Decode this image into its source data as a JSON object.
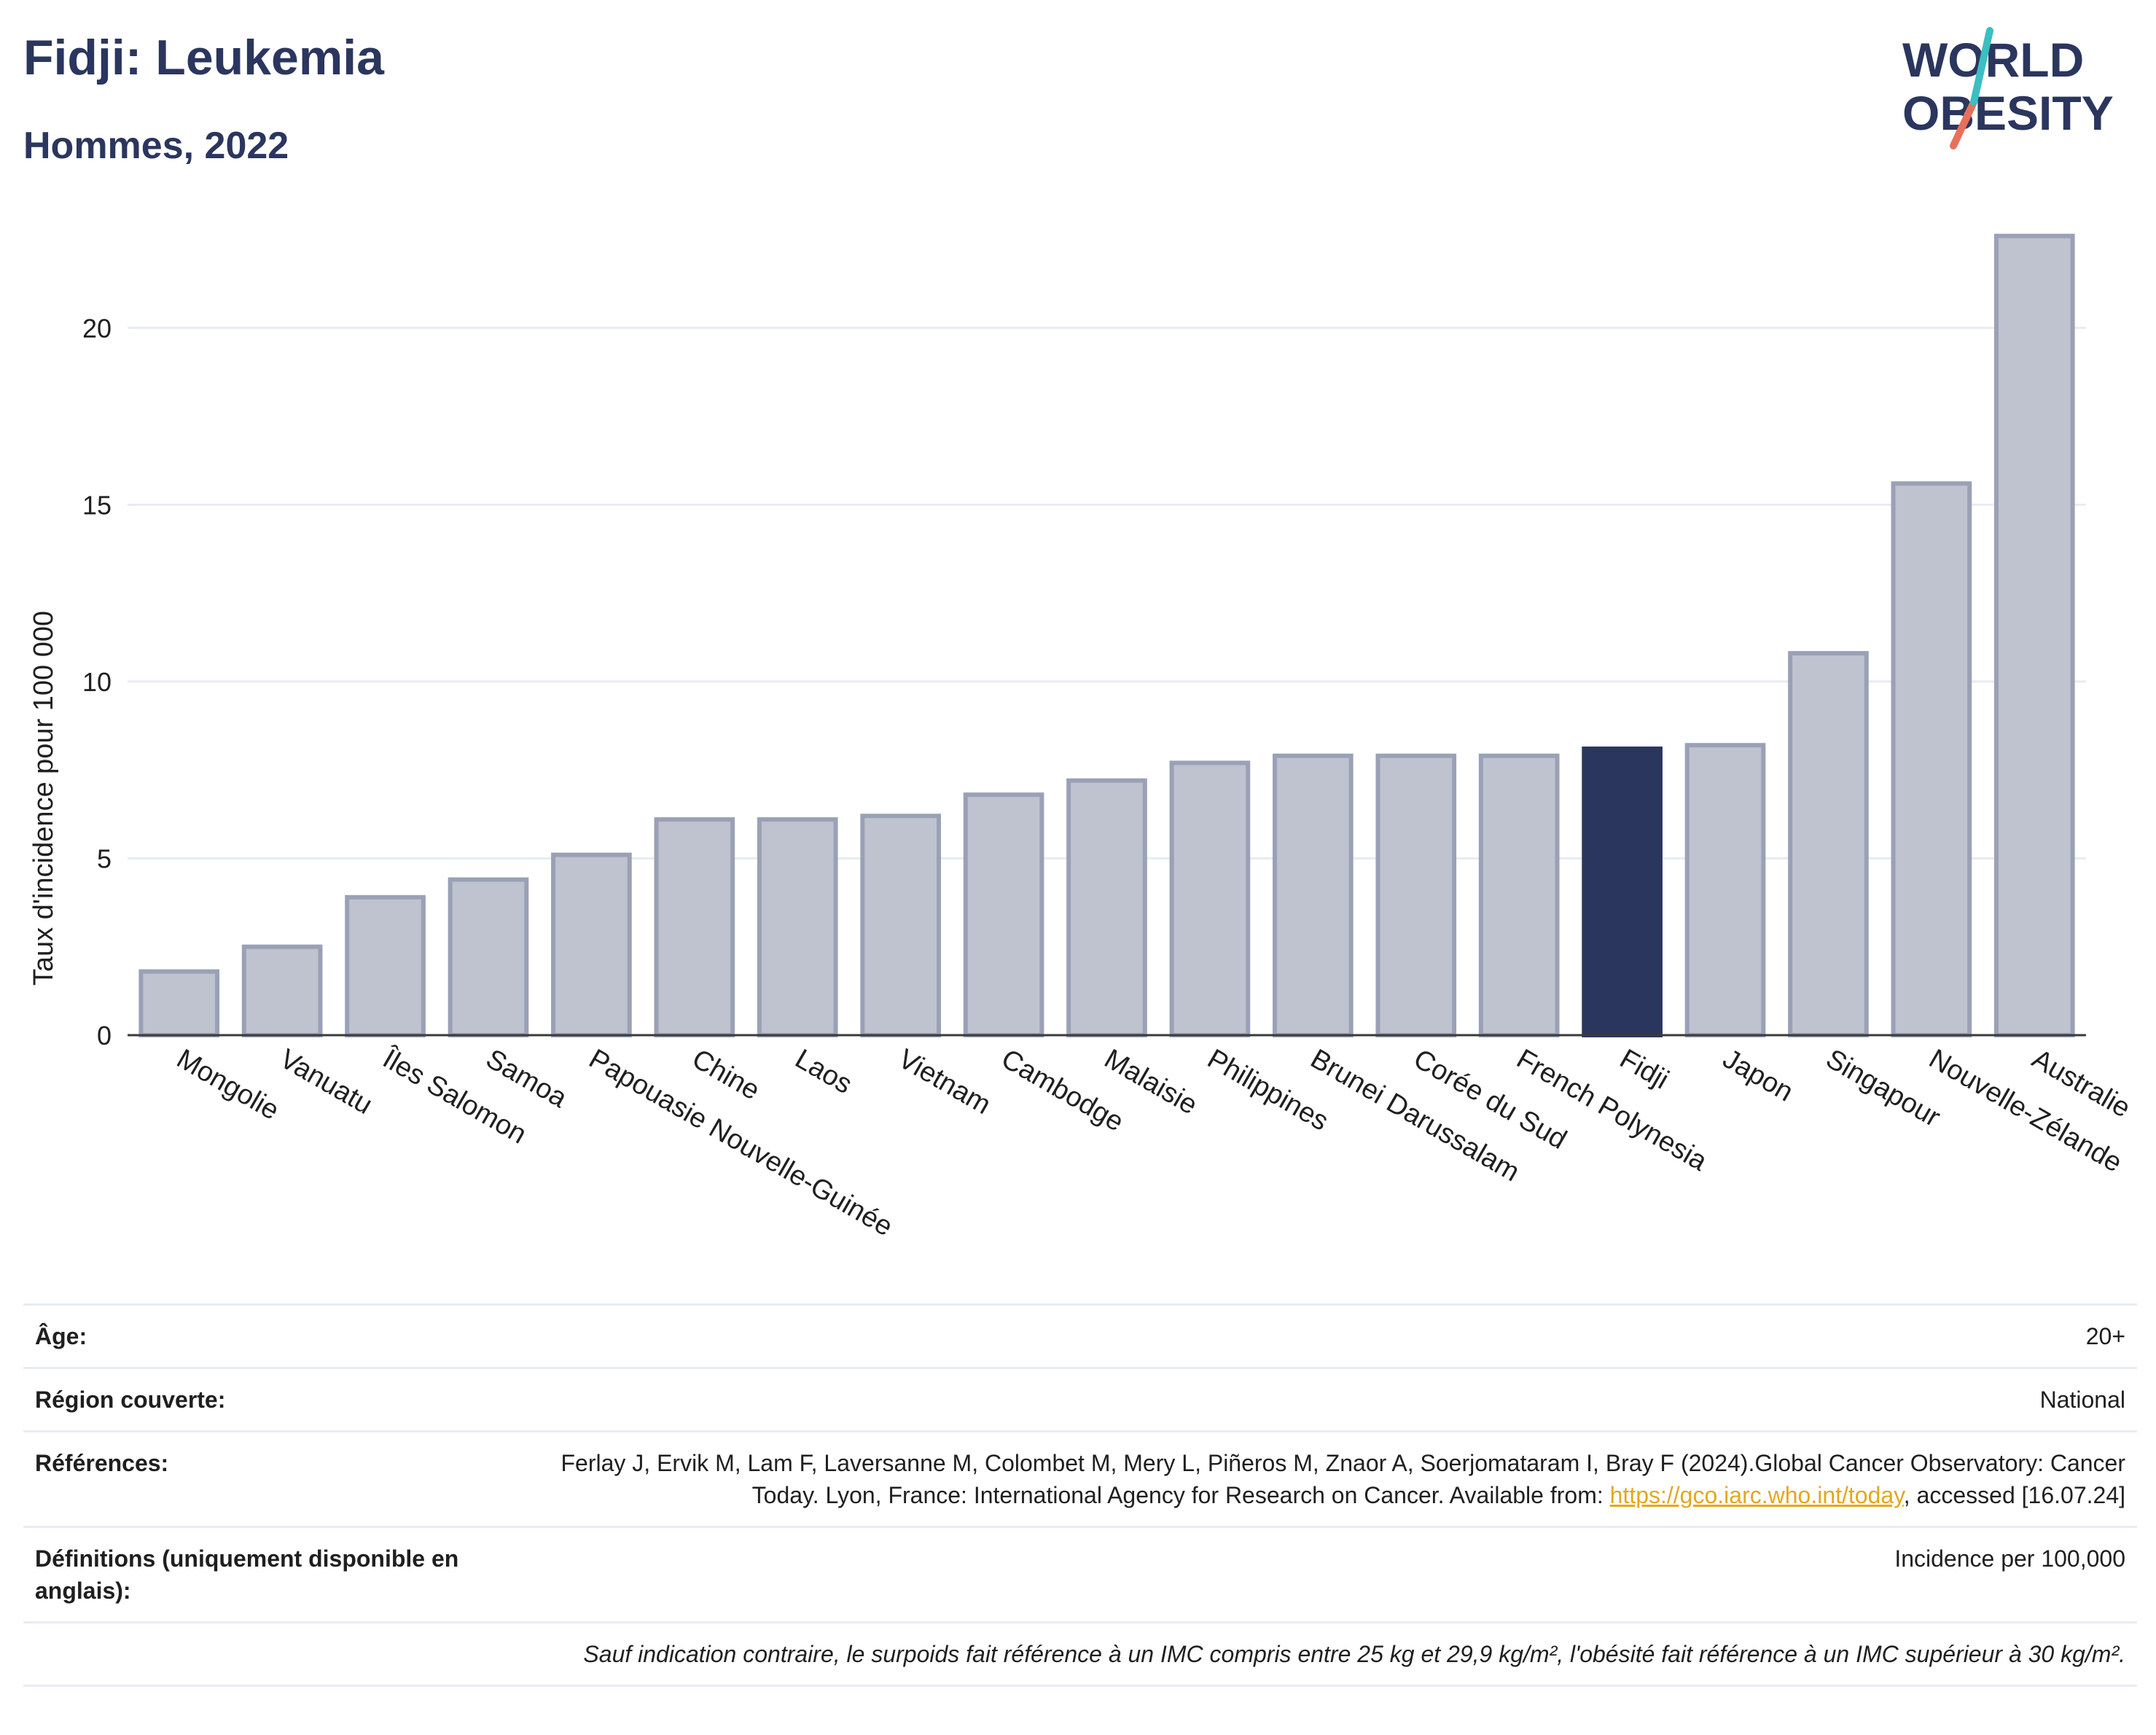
{
  "header": {
    "title": "Fidji: Leukemia",
    "subtitle": "Hommes, 2022",
    "logo_line1": "WORLD",
    "logo_line2": "OBESITY"
  },
  "colors": {
    "bar_default": "#bfc3cf",
    "bar_border": "#9aa1b6",
    "bar_highlight": "#2b365e",
    "title": "#2b365e",
    "grid": "#e8ebf2",
    "link": "#e3a81c"
  },
  "chart_data": {
    "type": "bar",
    "title": "Fidji: Leukemia",
    "subtitle": "Hommes, 2022",
    "ylabel": "Taux d'incidence pour 100 000",
    "xlabel": "",
    "ylim": [
      0,
      23.5
    ],
    "yticks": [
      0,
      5,
      10,
      15,
      20
    ],
    "grid": true,
    "highlight": "Fidji",
    "categories": [
      "Mongolie",
      "Vanuatu",
      "Îles Salomon",
      "Samoa",
      "Papouasie Nouvelle-Guinée",
      "Chine",
      "Laos",
      "Vietnam",
      "Cambodge",
      "Malaisie",
      "Philippines",
      "Brunei Darussalam",
      "Corée du Sud",
      "French Polynesia",
      "Fidji",
      "Japon",
      "Singapour",
      "Nouvelle-Zélande",
      "Australie"
    ],
    "values": [
      1.8,
      2.5,
      3.9,
      4.4,
      5.1,
      6.1,
      6.1,
      6.2,
      6.8,
      7.2,
      7.7,
      7.9,
      7.9,
      7.9,
      8.1,
      8.2,
      10.8,
      15.6,
      22.6
    ]
  },
  "info": {
    "rows": [
      {
        "label": "Âge:",
        "value": "20+"
      },
      {
        "label": "Région couverte:",
        "value": "National"
      },
      {
        "label": "Références:",
        "value": "Ferlay J, Ervik M, Lam F, Laversanne M, Colombet M, Mery L, Piñeros M, Znaor A, Soerjomataram I, Bray F (2024).Global Cancer Observatory: Cancer Today. Lyon, France: International Agency for Research on Cancer. Available from: ",
        "link": "https://gco.iarc.who.int/today",
        "value_after": ", accessed [16.07.24]"
      },
      {
        "label": "Définitions (uniquement disponible en anglais):",
        "value": "Incidence per 100,000"
      }
    ],
    "note": "Sauf indication contraire, le surpoids fait référence à un IMC compris entre 25 kg et 29,9 kg/m², l'obésité fait référence à un IMC supérieur à 30 kg/m²."
  }
}
